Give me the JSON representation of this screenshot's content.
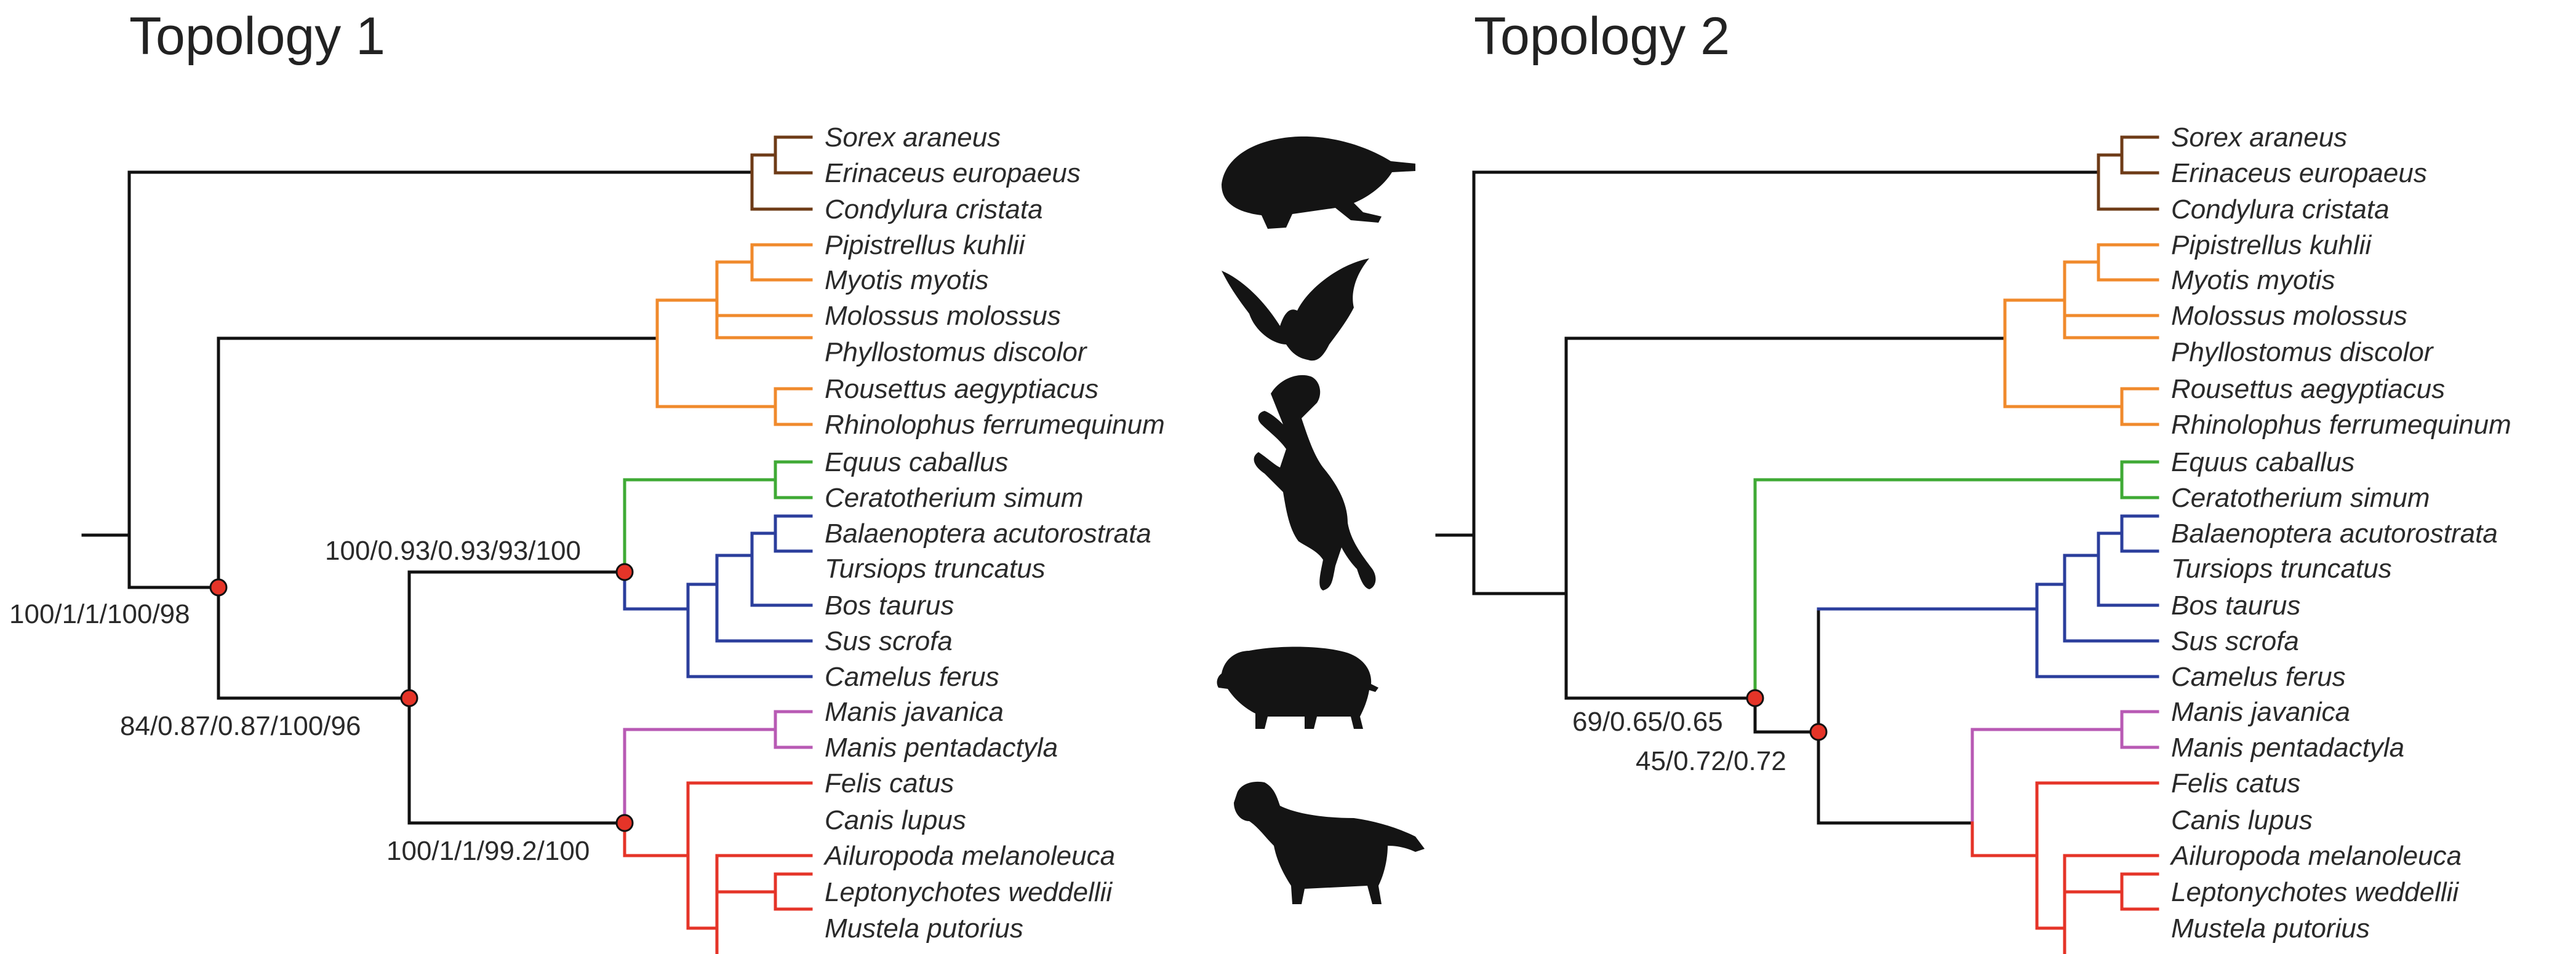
{
  "titles": {
    "left": "Topology 1",
    "right": "Topology 2"
  },
  "taxa": [
    "Sorex araneus",
    "Erinaceus europaeus",
    "Condylura cristata",
    "Pipistrellus kuhlii",
    "Myotis myotis",
    "Molossus molossus",
    "Phyllostomus discolor",
    "Rousettus aegyptiacus",
    "Rhinolophus ferrumequinum",
    "Equus caballus",
    "Ceratotherium simum",
    "Balaenoptera acutorostrata",
    "Tursiops truncatus",
    "Bos taurus",
    "Sus scrofa",
    "Camelus ferus",
    "Manis javanica",
    "Manis pentadactyla",
    "Felis catus",
    "Canis lupus",
    "Ailuropoda melanoleuca",
    "Leptonychotes weddellii",
    "Mustela putorius"
  ],
  "topology1_support": {
    "root": "100/1/1/100/98",
    "node_b": "84/0.87/0.87/100/96",
    "node_perisso": "100/0.93/0.93/93/100",
    "node_feru": "100/1/1/99.2/100"
  },
  "topology2_support": {
    "node_a": "69/0.65/0.65",
    "node_b": "45/0.72/0.72"
  },
  "clade_colors": {
    "eulipotyphla": "#6e3b17",
    "chiroptera": "#f08a2c",
    "perissodactyla": "#3faa35",
    "cetartiodactyla": "#2b3e9c",
    "pholidota": "#b85ab4",
    "carnivora": "#e53428"
  },
  "silhouettes": [
    "mole-icon",
    "bat-icon",
    "horse-icon",
    "pig-icon",
    "dog-icon"
  ]
}
